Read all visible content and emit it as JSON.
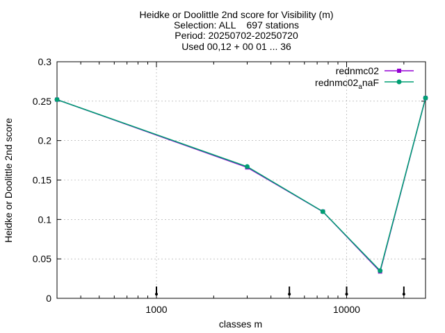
{
  "chart_data": {
    "type": "line",
    "title_lines": [
      "Heidke or Doolittle 2nd score  for Visibility (m)",
      "Selection: ALL    697 stations",
      "Period: 20250702-20250720",
      "Used 00,12 + 00 01 ... 36"
    ],
    "xlabel": "classes m",
    "ylabel": "Heidke or Doolittle 2nd score",
    "x_scale": "log",
    "xlim": [
      300,
      26000
    ],
    "ylim": [
      0,
      0.3
    ],
    "x_ticks": [
      {
        "value": 1000,
        "label": "1000"
      },
      {
        "value": 10000,
        "label": "10000"
      }
    ],
    "y_ticks": [
      {
        "value": 0,
        "label": "0"
      },
      {
        "value": 0.05,
        "label": "0.05"
      },
      {
        "value": 0.1,
        "label": "0.1"
      },
      {
        "value": 0.15,
        "label": "0.15"
      },
      {
        "value": 0.2,
        "label": "0.2"
      },
      {
        "value": 0.25,
        "label": "0.25"
      },
      {
        "value": 0.3,
        "label": "0.3"
      }
    ],
    "grid": true,
    "legend": "top-right",
    "series": [
      {
        "name": "rednmc02",
        "color": "#9400d3",
        "x": [
          300,
          3000,
          7500,
          15000,
          26000
        ],
        "y": [
          0.252,
          0.166,
          0.11,
          0.034,
          0.254
        ]
      },
      {
        "name_main": "rednmc02",
        "name_sub": "a",
        "name_tail": "naF",
        "color": "#009e73",
        "x": [
          300,
          3000,
          7500,
          15000,
          26000
        ],
        "y": [
          0.252,
          0.167,
          0.11,
          0.035,
          0.254
        ]
      }
    ],
    "markers_x": [
      1000,
      5000,
      10000,
      20000
    ]
  }
}
